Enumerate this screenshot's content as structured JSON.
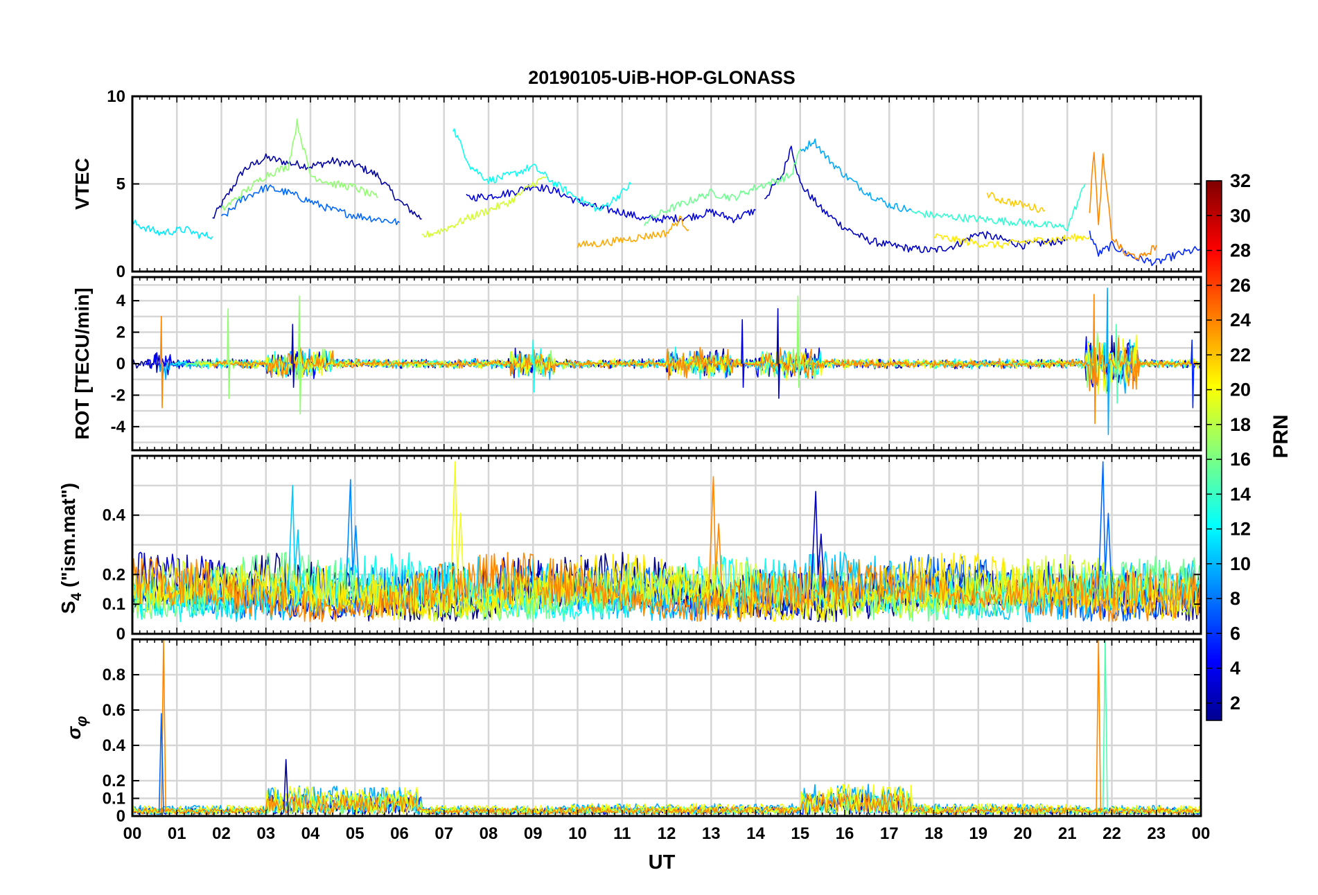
{
  "chart_data": {
    "type": "line",
    "title": "20190105-UiB-HOP-GLONASS",
    "xlabel": "UT",
    "xlim": [
      0,
      24
    ],
    "x_tick_labels": [
      "00",
      "01",
      "02",
      "03",
      "04",
      "05",
      "06",
      "07",
      "08",
      "09",
      "10",
      "11",
      "12",
      "13",
      "14",
      "15",
      "16",
      "17",
      "18",
      "19",
      "20",
      "21",
      "22",
      "23",
      "00"
    ],
    "colorbar": {
      "label": "PRN",
      "range": [
        1,
        32
      ],
      "tick_labels": [
        "2",
        "4",
        "6",
        "8",
        "10",
        "12",
        "14",
        "16",
        "18",
        "20",
        "22",
        "24",
        "26",
        "28",
        "30",
        "32"
      ]
    },
    "panels": [
      {
        "id": "vtec",
        "ylabel": "VTEC",
        "ylim": [
          0,
          10
        ],
        "yticks": [
          0,
          5,
          10
        ],
        "ytick_labels": [
          "0",
          "5",
          "10"
        ],
        "series": [
          {
            "prn": 2,
            "x": [
              1.8,
              2.5,
              3.0,
              3.5,
              4.0,
              4.5,
              5.0,
              5.5,
              6.0,
              6.5
            ],
            "y": [
              3.0,
              5.8,
              6.5,
              6.2,
              6.0,
              6.3,
              6.1,
              5.5,
              4.0,
              3.0
            ]
          },
          {
            "prn": 3,
            "x": [
              14.2,
              14.6,
              14.8,
              15.0,
              15.5,
              16.0,
              16.5,
              17.0,
              17.5,
              18.0,
              18.5,
              19.0,
              20.0,
              21.0
            ],
            "y": [
              4.2,
              5.5,
              7.2,
              5.0,
              3.5,
              2.5,
              1.8,
              1.5,
              1.3,
              1.2,
              1.5,
              2.2,
              1.5,
              1.8
            ]
          },
          {
            "prn": 4,
            "x": [
              7.5,
              8.0,
              8.5,
              9.0,
              9.5,
              10.0,
              10.5,
              11.0,
              11.5,
              12.0,
              12.5,
              13.0,
              13.5,
              14.0
            ],
            "y": [
              4.2,
              4.3,
              4.5,
              4.9,
              4.6,
              4.0,
              3.6,
              3.4,
              3.0,
              3.0,
              3.1,
              3.4,
              3.0,
              3.5
            ]
          },
          {
            "prn": 6,
            "x": [
              21.5,
              21.7,
              22.0,
              22.5,
              23.0,
              23.5,
              24.0
            ],
            "y": [
              2.2,
              1.0,
              1.5,
              0.8,
              0.5,
              1.0,
              1.3
            ]
          },
          {
            "prn": 8,
            "x": [
              2.0,
              2.5,
              3.0,
              3.5,
              4.0,
              4.5,
              5.0,
              5.5,
              6.0
            ],
            "y": [
              3.0,
              4.2,
              4.8,
              4.5,
              4.0,
              3.5,
              3.2,
              3.0,
              2.8
            ]
          },
          {
            "prn": 10,
            "x": [
              15.0,
              15.3,
              15.6,
              16.0,
              16.5,
              17.0,
              17.5
            ],
            "y": [
              6.8,
              7.5,
              6.5,
              5.5,
              4.5,
              3.8,
              3.5
            ]
          },
          {
            "prn": 12,
            "x": [
              0.0,
              0.3,
              0.6,
              0.9,
              1.2,
              1.5,
              1.8
            ],
            "y": [
              2.8,
              2.5,
              2.2,
              2.3,
              2.4,
              2.1,
              2.0
            ]
          },
          {
            "prn": 13,
            "x": [
              7.2,
              7.6,
              8.0,
              8.5,
              9.0,
              9.5,
              10.0,
              10.5,
              11.0,
              11.2
            ],
            "y": [
              8.2,
              6.0,
              5.2,
              5.5,
              6.0,
              5.0,
              4.2,
              3.5,
              4.5,
              5.0
            ]
          },
          {
            "prn": 14,
            "x": [
              17.5,
              18.0,
              19.0,
              20.0,
              21.0,
              21.4
            ],
            "y": [
              3.4,
              3.2,
              3.0,
              2.8,
              2.5,
              5.0
            ]
          },
          {
            "prn": 16,
            "x": [
              11.5,
              12.0,
              12.5,
              13.0,
              13.5,
              14.0,
              14.5,
              14.8,
              15.0
            ],
            "y": [
              2.8,
              3.5,
              4.0,
              4.5,
              4.2,
              4.8,
              5.2,
              5.5,
              7.0
            ]
          },
          {
            "prn": 17,
            "x": [
              2.0,
              2.5,
              3.0,
              3.5,
              3.7,
              4.0,
              4.5,
              5.0,
              5.5
            ],
            "y": [
              3.5,
              4.5,
              5.5,
              6.0,
              8.5,
              5.5,
              5.0,
              4.8,
              4.2
            ]
          },
          {
            "prn": 19,
            "x": [
              6.5,
              7.0,
              7.5,
              8.0,
              8.5,
              9.0,
              9.3
            ],
            "y": [
              2.0,
              2.4,
              3.0,
              3.5,
              4.0,
              5.0,
              5.4
            ]
          },
          {
            "prn": 21,
            "x": [
              18.0,
              18.5,
              19.0,
              19.5,
              20.0,
              20.5,
              21.0,
              21.5
            ],
            "y": [
              2.0,
              1.8,
              1.6,
              1.5,
              1.7,
              1.8,
              1.9,
              2.0
            ]
          },
          {
            "prn": 23,
            "x": [
              10.0,
              10.5,
              11.0,
              11.5,
              12.0,
              12.3,
              12.5
            ],
            "y": [
              1.5,
              1.6,
              1.8,
              2.0,
              2.2,
              3.0,
              2.4
            ]
          },
          {
            "prn": 24,
            "x": [
              21.5,
              21.6,
              21.7,
              21.8,
              22.0,
              22.3,
              22.7,
              23.0
            ],
            "y": [
              3.5,
              7.0,
              2.5,
              6.5,
              2.0,
              1.0,
              0.8,
              1.5
            ]
          },
          {
            "prn": 22,
            "x": [
              19.2,
              19.5,
              20.0,
              20.5
            ],
            "y": [
              4.4,
              4.1,
              3.8,
              3.5
            ]
          }
        ]
      },
      {
        "id": "rot",
        "ylabel": "ROT [TECU/min]",
        "ylim": [
          -5.5,
          5.5
        ],
        "yticks": [
          -4,
          -2,
          0,
          2,
          4
        ],
        "ytick_labels": [
          "-4",
          "-2",
          "0",
          "2",
          "4"
        ],
        "spikes": [
          {
            "prn": 24,
            "x": 0.65,
            "min": -2.8,
            "max": 3.0
          },
          {
            "prn": 17,
            "x": 2.15,
            "min": -2.2,
            "max": 3.5
          },
          {
            "prn": 17,
            "x": 3.75,
            "min": -3.2,
            "max": 4.3
          },
          {
            "prn": 3,
            "x": 3.6,
            "min": -1.5,
            "max": 2.5
          },
          {
            "prn": 13,
            "x": 9.0,
            "min": -1.8,
            "max": 1.5
          },
          {
            "prn": 4,
            "x": 13.7,
            "min": -1.5,
            "max": 2.8
          },
          {
            "prn": 3,
            "x": 14.5,
            "min": -2.2,
            "max": 3.5
          },
          {
            "prn": 17,
            "x": 14.95,
            "min": -1.5,
            "max": 4.3
          },
          {
            "prn": 24,
            "x": 21.6,
            "min": -3.8,
            "max": 4.4
          },
          {
            "prn": 10,
            "x": 21.9,
            "min": -4.5,
            "max": 4.8
          },
          {
            "prn": 15,
            "x": 22.1,
            "min": -2.5,
            "max": 2.5
          },
          {
            "prn": 6,
            "x": 23.8,
            "min": -2.8,
            "max": 1.5
          }
        ]
      },
      {
        "id": "s4",
        "ylabel": "S4 (\"ism.mat\")",
        "ylabel_main": "S",
        "ylabel_sub": "4",
        "ylabel_rest": " (\"ism.mat\")",
        "ylim": [
          0,
          0.6
        ],
        "yticks": [
          0,
          0.1,
          0.2,
          0.4
        ],
        "ytick_labels": [
          "0",
          "0.1",
          "0.2",
          "0.4"
        ],
        "peaks": [
          {
            "prn": 11,
            "x": 3.6,
            "value": 0.5
          },
          {
            "prn": 9,
            "x": 4.9,
            "value": 0.52
          },
          {
            "prn": 20,
            "x": 7.25,
            "value": 0.58
          },
          {
            "prn": 24,
            "x": 13.05,
            "value": 0.53
          },
          {
            "prn": 3,
            "x": 15.35,
            "value": 0.48
          },
          {
            "prn": 8,
            "x": 21.8,
            "value": 0.58
          }
        ]
      },
      {
        "id": "sigma_phi",
        "ylabel": "σφ",
        "ylabel_main": "σ",
        "ylabel_sub": "φ",
        "ylim": [
          0,
          1.0
        ],
        "yticks": [
          0,
          0.1,
          0.2,
          0.4,
          0.6,
          0.8
        ],
        "ytick_labels": [
          "0",
          "0.1",
          "0.2",
          "0.4",
          "0.6",
          "0.8"
        ],
        "peaks": [
          {
            "prn": 24,
            "x": 0.7,
            "value": 1.0
          },
          {
            "prn": 8,
            "x": 0.65,
            "value": 0.58
          },
          {
            "prn": 2,
            "x": 3.45,
            "value": 0.32
          },
          {
            "prn": 24,
            "x": 21.7,
            "value": 1.0
          },
          {
            "prn": 15,
            "x": 21.85,
            "value": 1.0
          }
        ]
      }
    ]
  }
}
